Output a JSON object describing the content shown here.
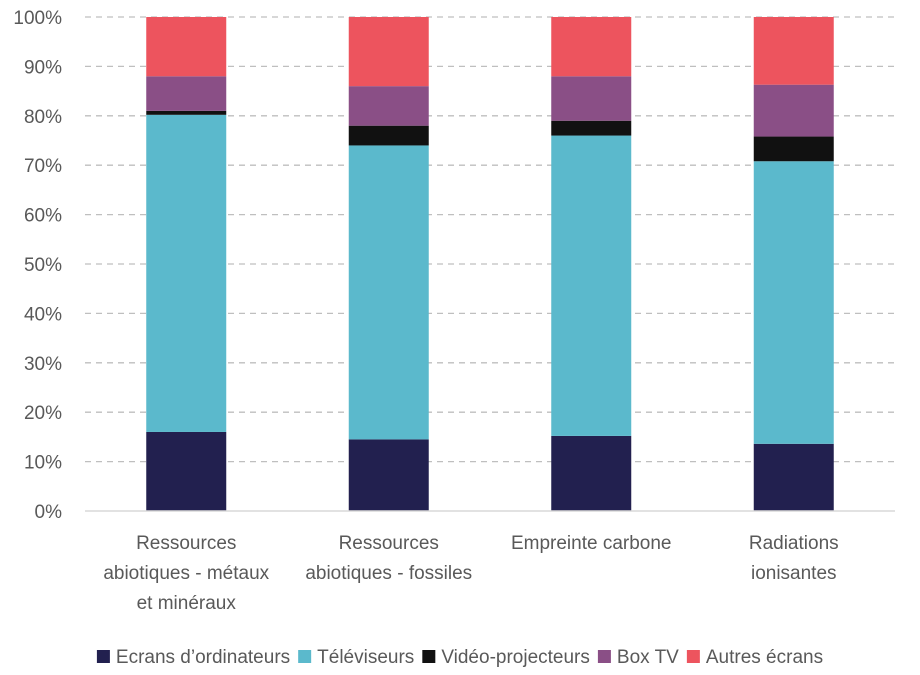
{
  "chart_data": {
    "type": "bar",
    "stacked": true,
    "normalized": true,
    "title": "",
    "xlabel": "",
    "ylabel": "",
    "ylim": [
      0,
      100
    ],
    "yticks": [
      "0%",
      "10%",
      "20%",
      "30%",
      "40%",
      "50%",
      "60%",
      "70%",
      "80%",
      "90%",
      "100%"
    ],
    "grid": true,
    "legend_position": "bottom",
    "categories": [
      [
        "Ressources",
        "abiotiques - métaux",
        "et minéraux"
      ],
      [
        "Ressources",
        "abiotiques - fossiles"
      ],
      [
        "Empreinte carbone"
      ],
      [
        "Radiations",
        "ionisantes"
      ]
    ],
    "series": [
      {
        "name": "Ecrans d’ordinateurs",
        "color": "#22204f",
        "values": [
          16,
          14.5,
          15.2,
          13.6
        ]
      },
      {
        "name": "Téléviseurs",
        "color": "#5bb9cc",
        "values": [
          64.2,
          59.5,
          60.8,
          57.2
        ]
      },
      {
        "name": "Vidéo-projecteurs",
        "color": "#111111",
        "values": [
          0.8,
          4.0,
          3.0,
          5.0
        ]
      },
      {
        "name": "Box TV",
        "color": "#8a4f86",
        "values": [
          7.0,
          8.0,
          9.0,
          10.5
        ]
      },
      {
        "name": "Autres écrans",
        "color": "#ed545e",
        "values": [
          12.0,
          14.0,
          12.0,
          13.7
        ]
      }
    ]
  }
}
